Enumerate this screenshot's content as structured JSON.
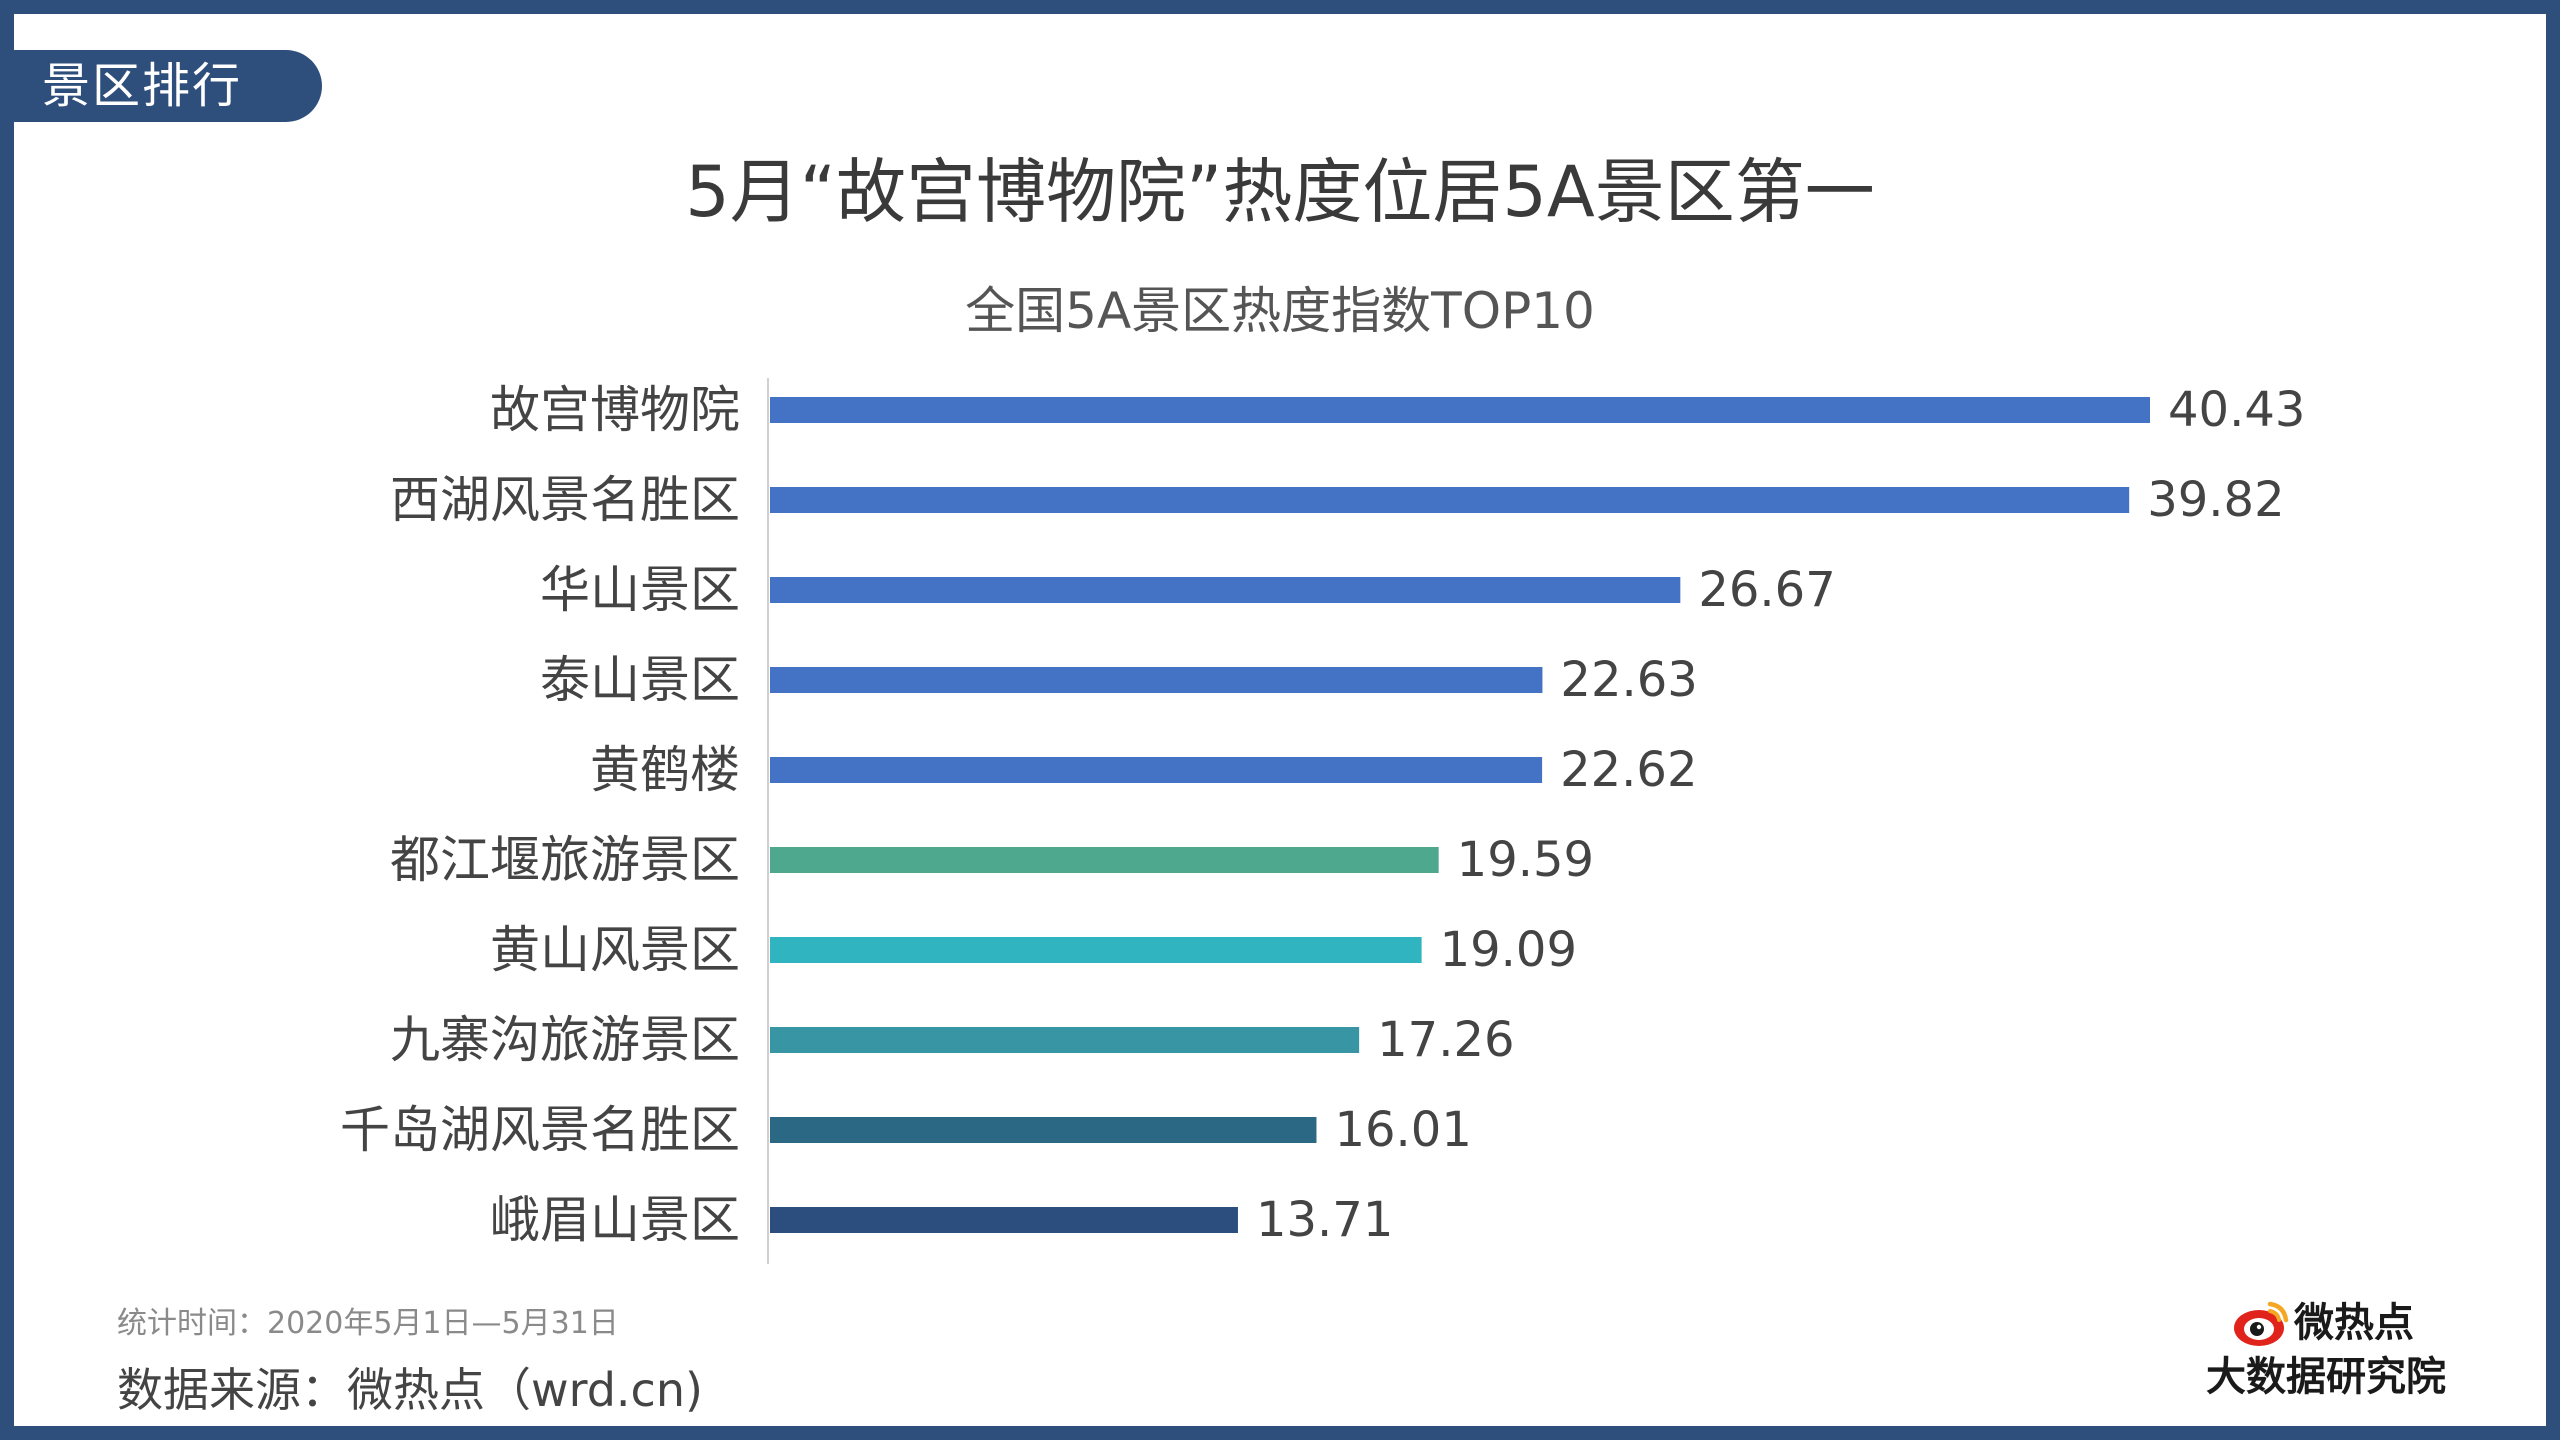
{
  "header": {
    "tag_label": "景区排行",
    "title": "5月“故宫博物院”热度位居5A景区第一",
    "subtitle": "全国5A景区热度指数TOP10"
  },
  "footer": {
    "time_note": "统计时间：2020年5月1日—5月31日",
    "source_note": "数据来源：微热点（wrd.cn)",
    "logo_name": "微热点",
    "logo_sub": "大数据研究院"
  },
  "colors": {
    "frame": "#2E4F7C",
    "bar_blue": "#4472C4",
    "bar_green": "#4EA88E",
    "bar_cyan": "#30B4C0",
    "bar_teal": "#3895A3",
    "bar_dark_teal": "#2B6883",
    "bar_navy": "#2C4E7E"
  },
  "chart_data": {
    "type": "bar",
    "orientation": "horizontal",
    "title": "全国5A景区热度指数TOP10",
    "categories": [
      "故宫博物院",
      "西湖风景名胜区",
      "华山景区",
      "泰山景区",
      "黄鹤楼",
      "都江堰旅游景区",
      "黄山风景区",
      "九寨沟旅游景区",
      "千岛湖风景名胜区",
      "峨眉山景区"
    ],
    "values": [
      40.43,
      39.82,
      26.67,
      22.63,
      22.62,
      19.59,
      19.09,
      17.26,
      16.01,
      13.71
    ],
    "value_labels": [
      "40.43",
      "39.82",
      "26.67",
      "22.63",
      "22.62",
      "19.59",
      "19.09",
      "17.26",
      "16.01",
      "13.71"
    ],
    "bar_colors": [
      "#4472C4",
      "#4472C4",
      "#4472C4",
      "#4472C4",
      "#4472C4",
      "#4EA88E",
      "#30B4C0",
      "#3895A3",
      "#2B6883",
      "#2C4E7E"
    ],
    "xlim": [
      0,
      45
    ],
    "grid": false,
    "legend": "none"
  }
}
